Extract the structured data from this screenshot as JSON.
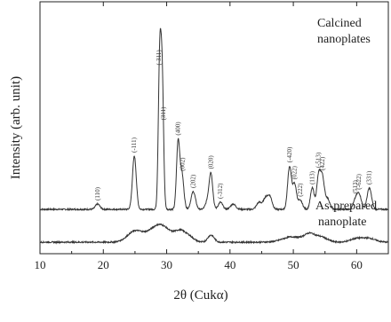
{
  "chart_data": {
    "type": "line",
    "xlabel": "2θ (Cukα)",
    "ylabel": "Intensity (arb. unit)",
    "xlim": [
      10,
      65
    ],
    "x_ticks": [
      10,
      20,
      30,
      40,
      50,
      60
    ],
    "grid": false,
    "series_labels": {
      "calcined": [
        "Calcined",
        "nanoplates"
      ],
      "as_prepared": [
        "As-prepared",
        "nanoplate"
      ]
    },
    "series": [
      {
        "key": "calcined",
        "baseline": 0.12,
        "peaks": [
          {
            "x": 19.1,
            "y": 0.03,
            "w": 0.35
          },
          {
            "x": 24.9,
            "y": 0.3,
            "w": 0.3
          },
          {
            "x": 28.9,
            "y": 0.82,
            "w": 0.22
          },
          {
            "x": 29.3,
            "y": 0.7,
            "w": 0.22
          },
          {
            "x": 31.8,
            "y": 0.37,
            "w": 0.25
          },
          {
            "x": 32.4,
            "y": 0.2,
            "w": 0.3
          },
          {
            "x": 34.2,
            "y": 0.1,
            "w": 0.35
          },
          {
            "x": 36.5,
            "y": 0.05,
            "w": 0.35
          },
          {
            "x": 37.0,
            "y": 0.19,
            "w": 0.28
          },
          {
            "x": 38.5,
            "y": 0.04,
            "w": 0.35
          },
          {
            "x": 40.5,
            "y": 0.03,
            "w": 0.4
          },
          {
            "x": 44.6,
            "y": 0.04,
            "w": 0.4
          },
          {
            "x": 45.6,
            "y": 0.06,
            "w": 0.35
          },
          {
            "x": 46.3,
            "y": 0.07,
            "w": 0.35
          },
          {
            "x": 49.4,
            "y": 0.24,
            "w": 0.3
          },
          {
            "x": 50.2,
            "y": 0.14,
            "w": 0.3
          },
          {
            "x": 51.1,
            "y": 0.05,
            "w": 0.35
          },
          {
            "x": 53.0,
            "y": 0.12,
            "w": 0.3
          },
          {
            "x": 54.0,
            "y": 0.19,
            "w": 0.3
          },
          {
            "x": 54.6,
            "y": 0.17,
            "w": 0.3
          },
          {
            "x": 55.4,
            "y": 0.06,
            "w": 0.35
          },
          {
            "x": 59.8,
            "y": 0.05,
            "w": 0.35
          },
          {
            "x": 60.4,
            "y": 0.08,
            "w": 0.35
          },
          {
            "x": 62.0,
            "y": 0.12,
            "w": 0.35
          }
        ]
      },
      {
        "key": "as_prepared",
        "baseline": 0.01,
        "peaks": [
          {
            "x": 25.0,
            "y": 0.06,
            "w": 1.2
          },
          {
            "x": 28.9,
            "y": 0.1,
            "w": 1.6
          },
          {
            "x": 32.1,
            "y": 0.05,
            "w": 0.8
          },
          {
            "x": 33.5,
            "y": 0.03,
            "w": 0.8
          },
          {
            "x": 37.0,
            "y": 0.04,
            "w": 0.5
          },
          {
            "x": 49.8,
            "y": 0.03,
            "w": 1.5
          },
          {
            "x": 52.5,
            "y": 0.04,
            "w": 0.8
          },
          {
            "x": 54.3,
            "y": 0.03,
            "w": 1.0
          },
          {
            "x": 60.0,
            "y": 0.02,
            "w": 1.0
          },
          {
            "x": 62.0,
            "y": 0.02,
            "w": 1.0
          }
        ]
      }
    ],
    "peak_labels": [
      {
        "x": 19.1,
        "text": "(110)"
      },
      {
        "x": 24.9,
        "text": "(-111)"
      },
      {
        "x": 28.8,
        "text": "(-311)"
      },
      {
        "x": 29.5,
        "text": "(311)"
      },
      {
        "x": 31.8,
        "text": "(400)"
      },
      {
        "x": 32.5,
        "text": "(002)"
      },
      {
        "x": 34.2,
        "text": "(202)"
      },
      {
        "x": 37.0,
        "text": "(020)"
      },
      {
        "x": 38.5,
        "text": "(-312)"
      },
      {
        "x": 49.4,
        "text": "(-420)"
      },
      {
        "x": 50.2,
        "text": "(022)"
      },
      {
        "x": 51.1,
        "text": "(222)"
      },
      {
        "x": 53.0,
        "text": "(113)"
      },
      {
        "x": 54.0,
        "text": "(-513)"
      },
      {
        "x": 54.6,
        "text": "(422)"
      },
      {
        "x": 59.8,
        "text": "(513)"
      },
      {
        "x": 60.4,
        "text": "(-622)"
      },
      {
        "x": 62.0,
        "text": "(331)"
      }
    ]
  }
}
